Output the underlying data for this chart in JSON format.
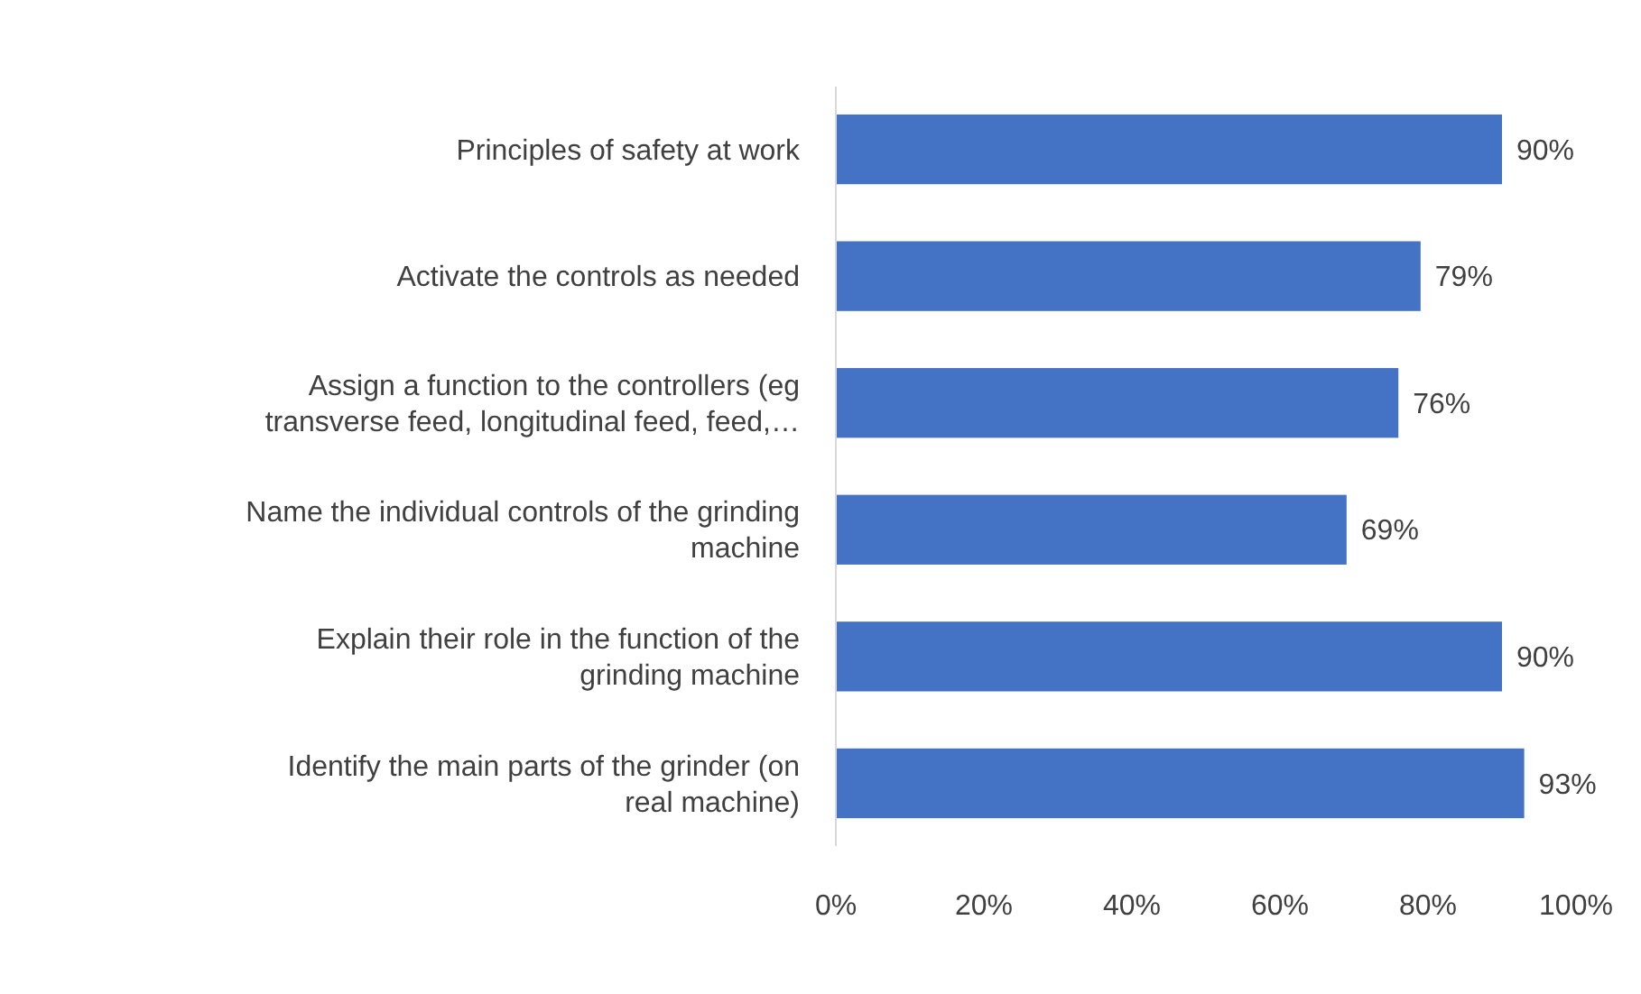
{
  "chart_data": {
    "type": "bar",
    "orientation": "horizontal",
    "categories": [
      "Principles of safety at work",
      "Activate the controls as needed",
      "Assign a function to the controllers (eg transverse feed, longitudinal feed, feed,…",
      "Name the individual controls of the grinding machine",
      "Explain their role in the function of the grinding machine",
      "Identify the main parts of the grinder (on real machine)"
    ],
    "values": [
      90,
      79,
      76,
      69,
      90,
      93
    ],
    "value_labels": [
      "90%",
      "79%",
      "76%",
      "69%",
      "90%",
      "93%"
    ],
    "color": "#4472c4",
    "xlim": [
      0,
      100
    ],
    "xticks": [
      {
        "value": 0,
        "label": "0%"
      },
      {
        "value": 20,
        "label": "20%"
      },
      {
        "value": 40,
        "label": "40%"
      },
      {
        "value": 60,
        "label": "60%"
      },
      {
        "value": 80,
        "label": "80%"
      },
      {
        "value": 100,
        "label": "100%"
      }
    ],
    "grid": false
  }
}
